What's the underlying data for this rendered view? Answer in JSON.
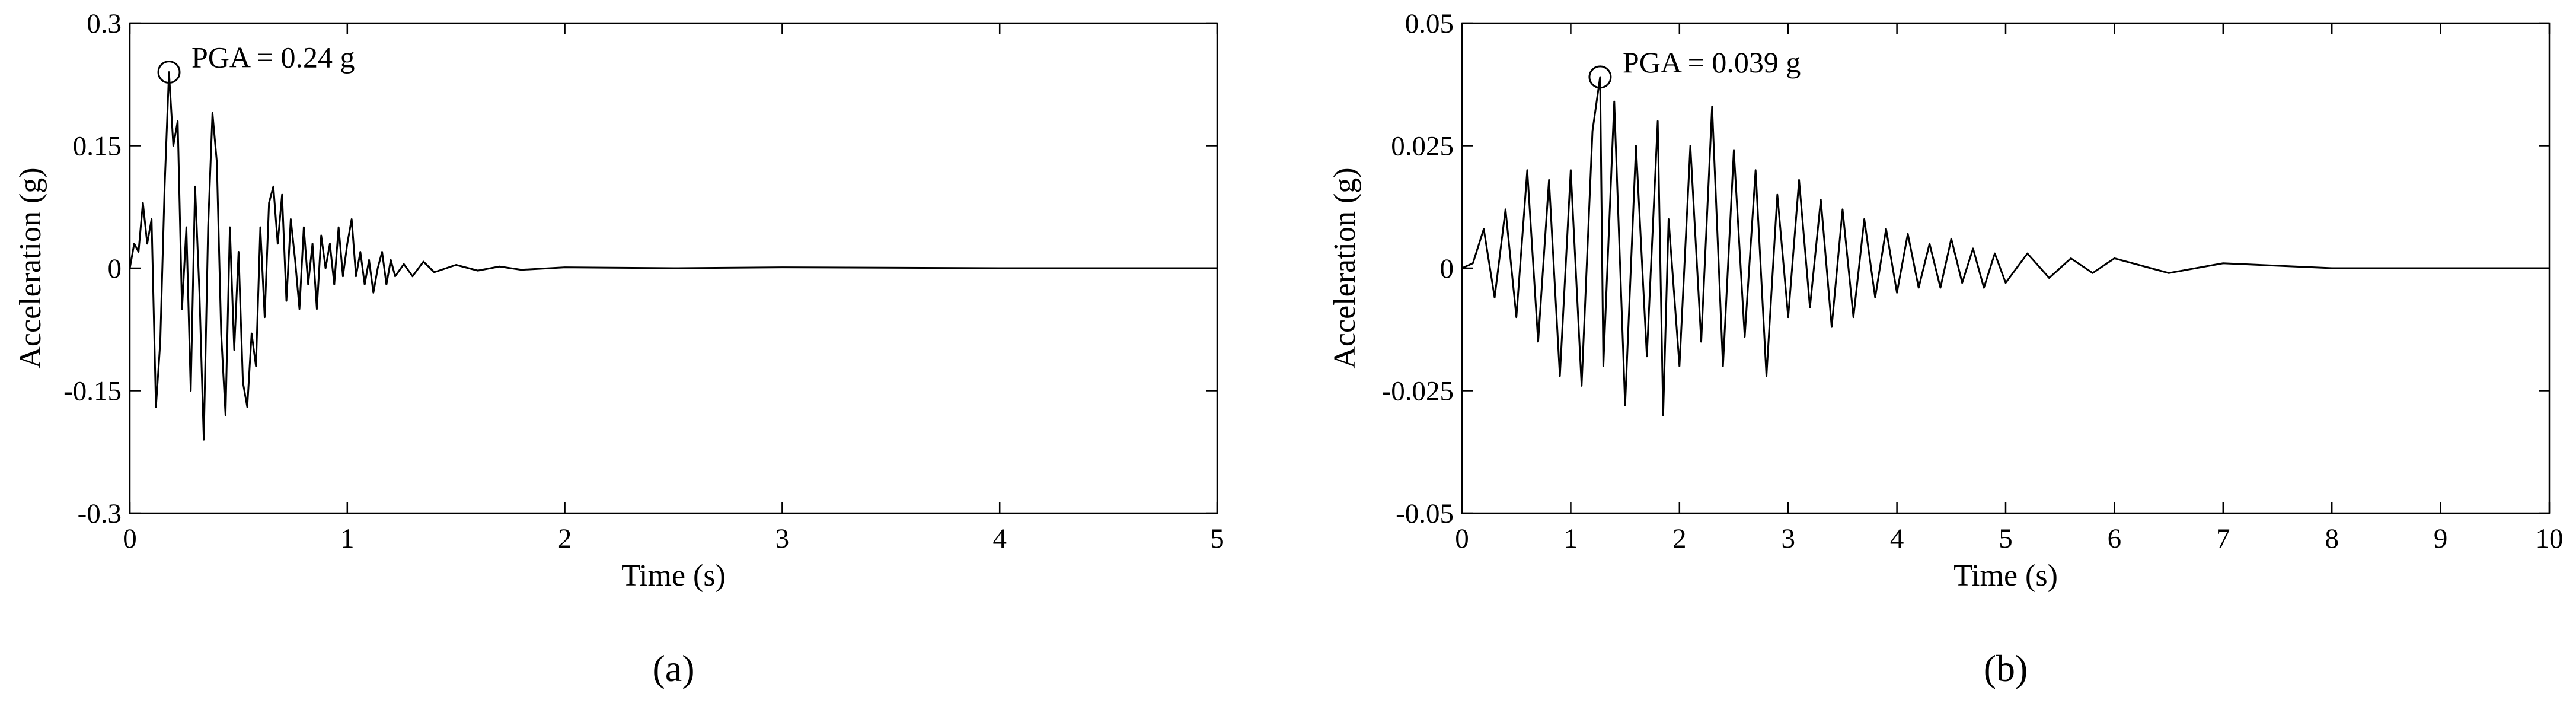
{
  "chart_data": [
    {
      "type": "line",
      "panel_label": "(a)",
      "xlabel": "Time (s)",
      "ylabel": "Acceleration (g)",
      "xlim": [
        0,
        5
      ],
      "xticks": [
        0,
        1,
        2,
        3,
        4,
        5
      ],
      "ylim": [
        -0.3,
        0.3
      ],
      "yticks": [
        -0.3,
        -0.15,
        0,
        0.15,
        0.3
      ],
      "annotation": {
        "text": "PGA = 0.24 g",
        "x": 0.18,
        "y": 0.24
      },
      "x": [
        0,
        0.02,
        0.04,
        0.06,
        0.08,
        0.1,
        0.12,
        0.14,
        0.16,
        0.18,
        0.2,
        0.22,
        0.24,
        0.26,
        0.28,
        0.3,
        0.32,
        0.34,
        0.36,
        0.38,
        0.4,
        0.42,
        0.44,
        0.46,
        0.48,
        0.5,
        0.52,
        0.54,
        0.56,
        0.58,
        0.6,
        0.62,
        0.64,
        0.66,
        0.68,
        0.7,
        0.72,
        0.74,
        0.76,
        0.78,
        0.8,
        0.82,
        0.84,
        0.86,
        0.88,
        0.9,
        0.92,
        0.94,
        0.96,
        0.98,
        1.0,
        1.02,
        1.04,
        1.06,
        1.08,
        1.1,
        1.12,
        1.14,
        1.16,
        1.18,
        1.2,
        1.22,
        1.26,
        1.3,
        1.35,
        1.4,
        1.5,
        1.6,
        1.7,
        1.8,
        2.0,
        2.5,
        3,
        4,
        5
      ],
      "series": [
        {
          "color": "#000000",
          "values": [
            0,
            0.03,
            0.02,
            0.08,
            0.03,
            0.06,
            -0.17,
            -0.09,
            0.1,
            0.24,
            0.15,
            0.18,
            -0.05,
            0.05,
            -0.15,
            0.1,
            -0.03,
            -0.21,
            0.05,
            0.19,
            0.13,
            -0.08,
            -0.18,
            0.05,
            -0.1,
            0.02,
            -0.14,
            -0.17,
            -0.08,
            -0.12,
            0.05,
            -0.06,
            0.08,
            0.1,
            0.03,
            0.09,
            -0.04,
            0.06,
            0.01,
            -0.05,
            0.05,
            -0.02,
            0.03,
            -0.05,
            0.04,
            0,
            0.03,
            -0.02,
            0.05,
            -0.01,
            0.03,
            0.06,
            -0.01,
            0.02,
            -0.02,
            0.01,
            -0.03,
            0,
            0.02,
            -0.02,
            0.01,
            -0.01,
            0.005,
            -0.01,
            0.008,
            -0.005,
            0.004,
            -0.003,
            0.002,
            -0.002,
            0.001,
            0,
            0.001,
            0,
            0
          ]
        }
      ]
    },
    {
      "type": "line",
      "panel_label": "(b)",
      "xlabel": "Time (s)",
      "ylabel": "Acceleration (g)",
      "xlim": [
        0,
        10
      ],
      "xticks": [
        0,
        1,
        2,
        3,
        4,
        5,
        6,
        7,
        8,
        9,
        10
      ],
      "ylim": [
        -0.05,
        0.05
      ],
      "yticks": [
        -0.05,
        -0.025,
        0,
        0.025,
        0.05
      ],
      "annotation": {
        "text": "PGA = 0.039 g",
        "x": 1.27,
        "y": 0.039
      },
      "x": [
        0,
        0.1,
        0.2,
        0.3,
        0.4,
        0.5,
        0.6,
        0.7,
        0.8,
        0.9,
        1.0,
        1.1,
        1.2,
        1.27,
        1.3,
        1.4,
        1.5,
        1.6,
        1.7,
        1.8,
        1.85,
        1.9,
        2.0,
        2.1,
        2.2,
        2.3,
        2.4,
        2.5,
        2.6,
        2.7,
        2.8,
        2.9,
        3.0,
        3.1,
        3.2,
        3.3,
        3.4,
        3.5,
        3.6,
        3.7,
        3.8,
        3.9,
        4.0,
        4.1,
        4.2,
        4.3,
        4.4,
        4.5,
        4.6,
        4.7,
        4.8,
        4.9,
        5.0,
        5.2,
        5.4,
        5.6,
        5.8,
        6.0,
        6.5,
        7,
        8,
        9,
        10
      ],
      "series": [
        {
          "color": "#000000",
          "values": [
            0,
            0.001,
            0.008,
            -0.006,
            0.012,
            -0.01,
            0.02,
            -0.015,
            0.018,
            -0.022,
            0.02,
            -0.024,
            0.028,
            0.039,
            -0.02,
            0.034,
            -0.028,
            0.025,
            -0.018,
            0.03,
            -0.03,
            0.01,
            -0.02,
            0.025,
            -0.015,
            0.033,
            -0.02,
            0.024,
            -0.014,
            0.02,
            -0.022,
            0.015,
            -0.01,
            0.018,
            -0.008,
            0.014,
            -0.012,
            0.012,
            -0.01,
            0.01,
            -0.006,
            0.008,
            -0.005,
            0.007,
            -0.004,
            0.005,
            -0.004,
            0.006,
            -0.003,
            0.004,
            -0.004,
            0.003,
            -0.003,
            0.003,
            -0.002,
            0.002,
            -0.001,
            0.002,
            -0.001,
            0.001,
            0,
            0,
            0
          ]
        }
      ]
    }
  ]
}
